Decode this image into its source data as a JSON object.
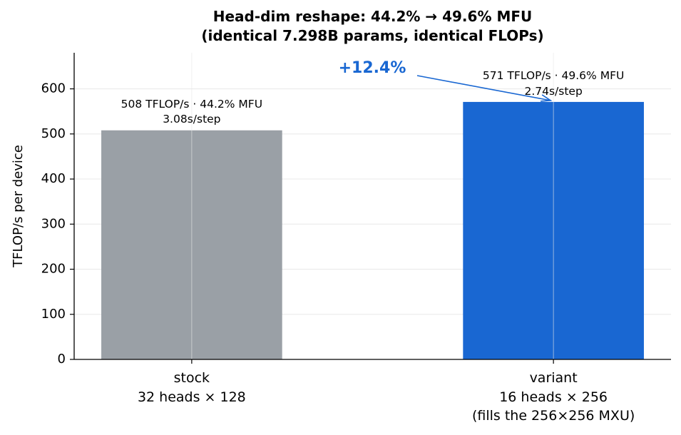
{
  "chart_data": {
    "type": "bar",
    "title": "Head-dim reshape: 44.2% → 49.6% MFU\n(identical 7.298B params, identical FLOPs)",
    "ylabel": "TFLOP/s per device",
    "categories": [
      "stock\n32 heads × 128",
      "variant\n16 heads × 256\n(fills the 256×256 MXU)"
    ],
    "values": [
      508,
      571
    ],
    "value_labels": [
      "508 TFLOP/s · 44.2% MFU\n3.08s/step",
      "571 TFLOP/s · 49.6% MFU\n2.74s/step"
    ],
    "colors": [
      "#9aa0a6",
      "#1967d2"
    ],
    "ylim": [
      0,
      680
    ],
    "yticks": [
      0,
      100,
      200,
      300,
      400,
      500,
      600
    ],
    "grid": true,
    "annotation": {
      "text": "+12.4%",
      "color": "#1967d2"
    }
  }
}
